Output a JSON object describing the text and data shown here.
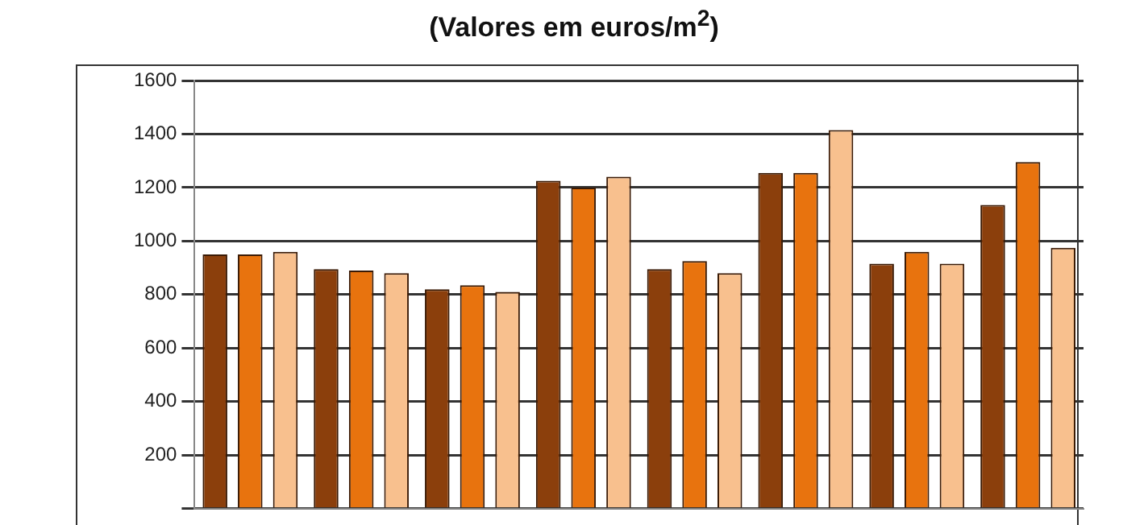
{
  "chart_data": {
    "type": "bar",
    "title": "(Valores em euros/m$^{2}$)",
    "categories": [
      null,
      null,
      null,
      null,
      null,
      null,
      null,
      null
    ],
    "series": [
      {
        "color": "#8b3f0c",
        "values": [
          950,
          895,
          820,
          1225,
          895,
          1255,
          915,
          1135
        ]
      },
      {
        "color": "#e8730e",
        "values": [
          950,
          890,
          835,
          1200,
          925,
          1255,
          960,
          1295
        ]
      },
      {
        "color": "#f8c08e",
        "values": [
          960,
          880,
          810,
          1240,
          880,
          1415,
          915,
          975
        ]
      }
    ],
    "ylim": [
      0,
      1600
    ],
    "yticks": [
      {
        "value": 0,
        "label": null
      },
      200,
      400,
      600,
      800,
      1000,
      1200,
      1400,
      1600
    ],
    "grid": "y",
    "legend": false
  }
}
